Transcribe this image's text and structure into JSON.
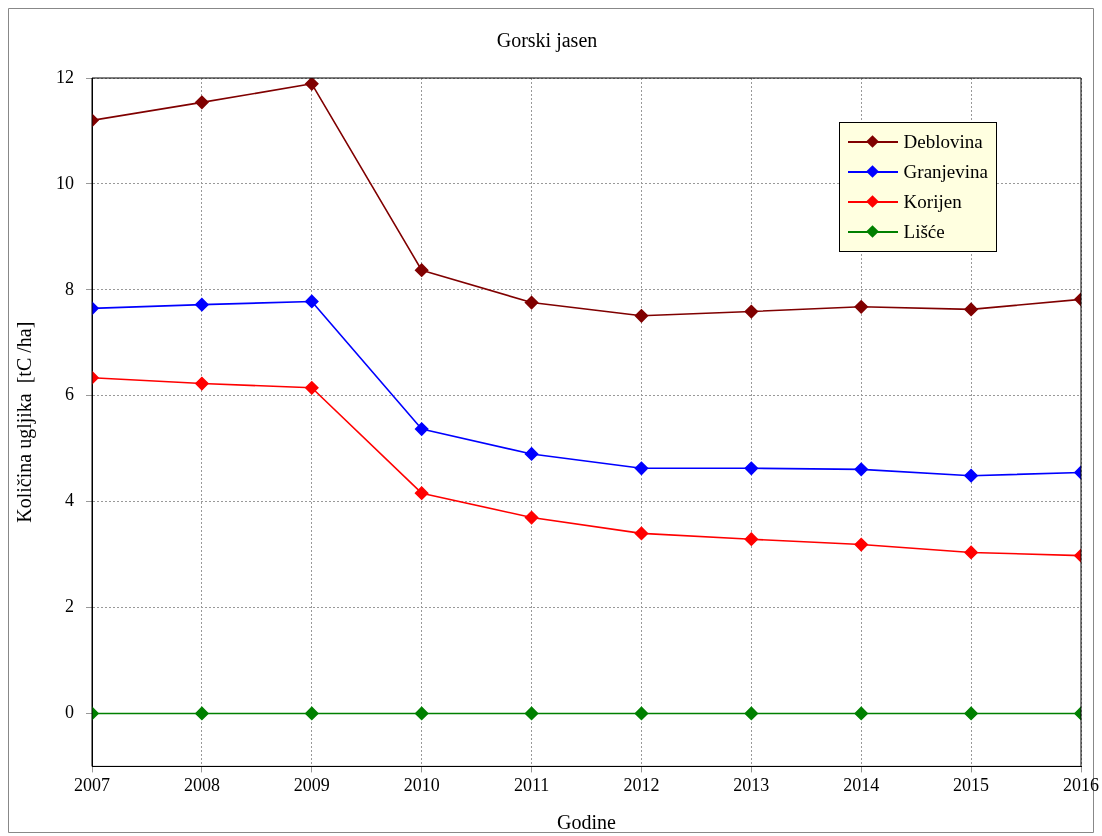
{
  "chart_data": {
    "type": "line",
    "title": "Gorski jasen",
    "xlabel": "Godine",
    "ylabel": "Količina ugljika  [tC /ha]",
    "x": [
      2007,
      2008,
      2009,
      2010,
      2011,
      2012,
      2013,
      2014,
      2015,
      2016
    ],
    "series": [
      {
        "name": "Deblovina",
        "color": "#800000",
        "values": [
          11.2,
          11.54,
          11.89,
          8.37,
          7.76,
          7.51,
          7.59,
          7.68,
          7.63,
          7.82
        ]
      },
      {
        "name": "Granjevina",
        "color": "#0000ff",
        "values": [
          7.65,
          7.72,
          7.78,
          5.37,
          4.9,
          4.63,
          4.63,
          4.61,
          4.49,
          4.55
        ]
      },
      {
        "name": "Korijen",
        "color": "#ff0000",
        "values": [
          6.34,
          6.23,
          6.15,
          4.16,
          3.7,
          3.4,
          3.29,
          3.19,
          3.04,
          2.98
        ]
      },
      {
        "name": "Lišće",
        "color": "#008000",
        "values": [
          0,
          0,
          0,
          0,
          0,
          0,
          0,
          0,
          0,
          0
        ]
      }
    ],
    "xlim": [
      2007,
      2016
    ],
    "xticks": [
      2007,
      2008,
      2009,
      2010,
      2011,
      2012,
      2013,
      2014,
      2015,
      2016
    ],
    "ylim": [
      -1,
      12
    ],
    "yticks": [
      0,
      2,
      4,
      6,
      8,
      10,
      12
    ],
    "grid": true,
    "legend": "top right",
    "marker": "diamond",
    "line_style": "solid"
  }
}
